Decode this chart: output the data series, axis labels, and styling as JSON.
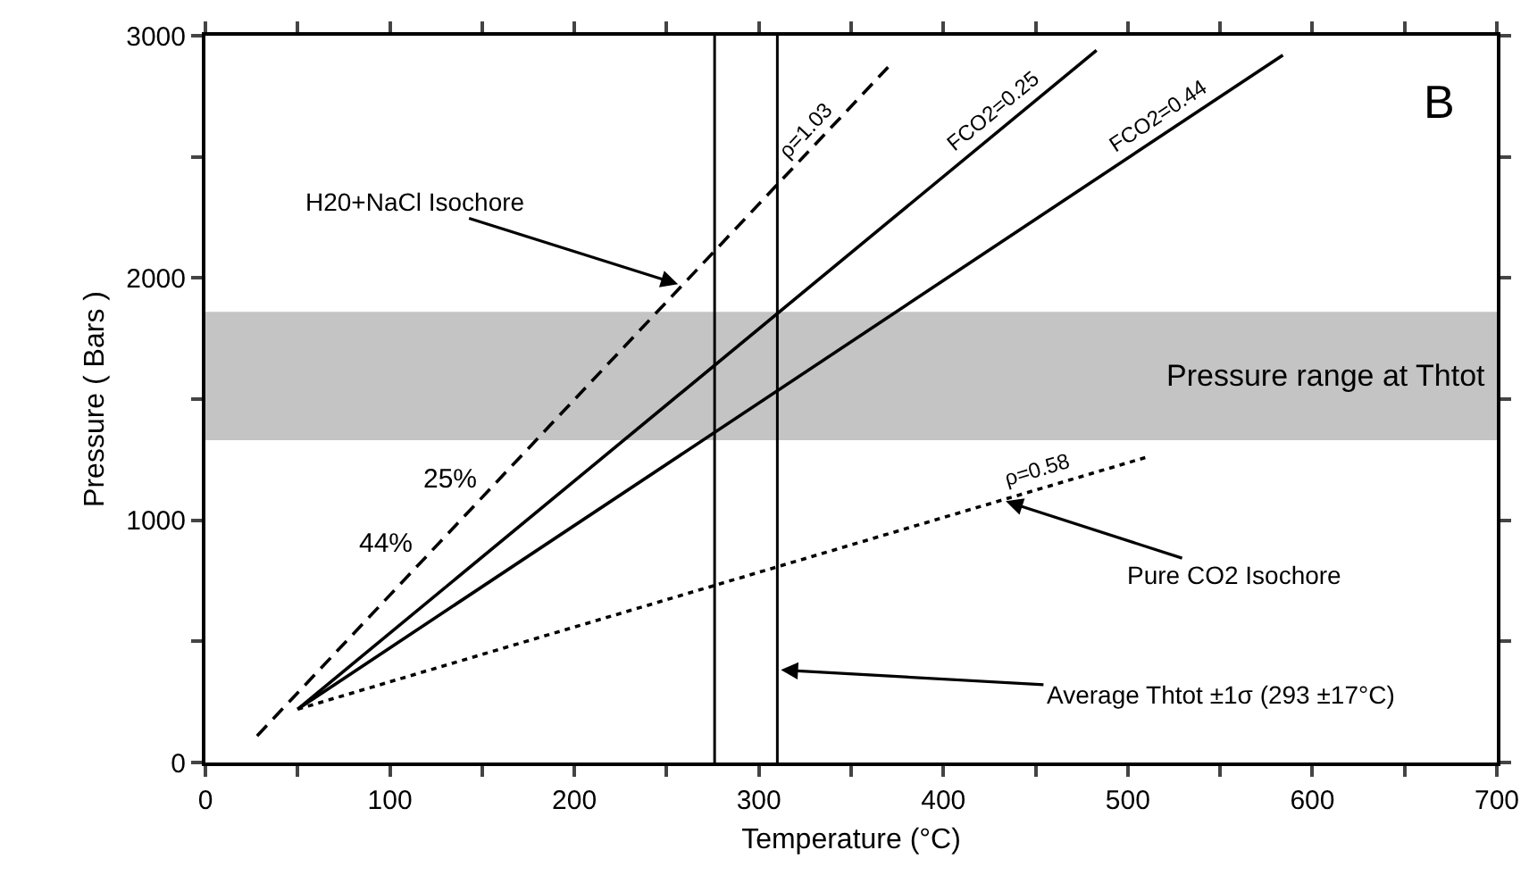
{
  "chart_data": {
    "type": "line",
    "xlabel": "Temperature (°C)",
    "ylabel": "Pressure ( Bars )",
    "xlim": [
      0,
      700
    ],
    "ylim": [
      0,
      3000
    ],
    "xticks": [
      0,
      {
        "value": 50,
        "label": null
      },
      100,
      {
        "value": 150,
        "label": null
      },
      200,
      {
        "value": 250,
        "label": null
      },
      300,
      {
        "value": 350,
        "label": null
      },
      400,
      {
        "value": 450,
        "label": null
      },
      500,
      {
        "value": 550,
        "label": null
      },
      600,
      {
        "value": 650,
        "label": null
      },
      700
    ],
    "yticks": [
      0,
      {
        "value": 500,
        "label": null
      },
      1000,
      {
        "value": 1500,
        "label": null
      },
      2000,
      {
        "value": 2500,
        "label": null
      },
      3000
    ],
    "grid": false,
    "legend": false,
    "marker": "none",
    "series": [
      {
        "name": "ρ=1.03",
        "color": "#000000",
        "line_style": "dashed",
        "x": [
          28,
          370
        ],
        "values": [
          110,
          2870
        ]
      },
      {
        "name": "FCO2=0.25",
        "color": "#000000",
        "line_style": "solid",
        "x": [
          50,
          483
        ],
        "values": [
          220,
          2940
        ]
      },
      {
        "name": "FCO2=0.44",
        "color": "#000000",
        "line_style": "solid",
        "x": [
          50,
          584
        ],
        "values": [
          220,
          2920
        ]
      },
      {
        "name": "ρ=0.58",
        "color": "#000000",
        "line_style": "dotted",
        "x": [
          50,
          510
        ],
        "values": [
          220,
          1260
        ]
      }
    ],
    "ref_lines": [
      {
        "axis": "x",
        "value": 276,
        "color": "#000000",
        "line_style": "solid"
      },
      {
        "axis": "x",
        "value": 310,
        "color": "#000000",
        "line_style": "solid"
      }
    ],
    "bands": [
      {
        "axis": "y",
        "from": 1330,
        "to": 1860,
        "label": "Pressure range at Thtot",
        "color": "#c4c4c4"
      }
    ],
    "annotations": [
      {
        "text": "H20+NaCl Isochore",
        "x": 258,
        "y": 1970
      },
      {
        "text": "Pure CO2 Isochore",
        "x": 432,
        "y": 1083
      },
      {
        "text": "Average Thtot ±1σ (293 ±17°C)",
        "x": 310,
        "y": 383
      },
      "25%",
      "44%",
      "B"
    ]
  }
}
